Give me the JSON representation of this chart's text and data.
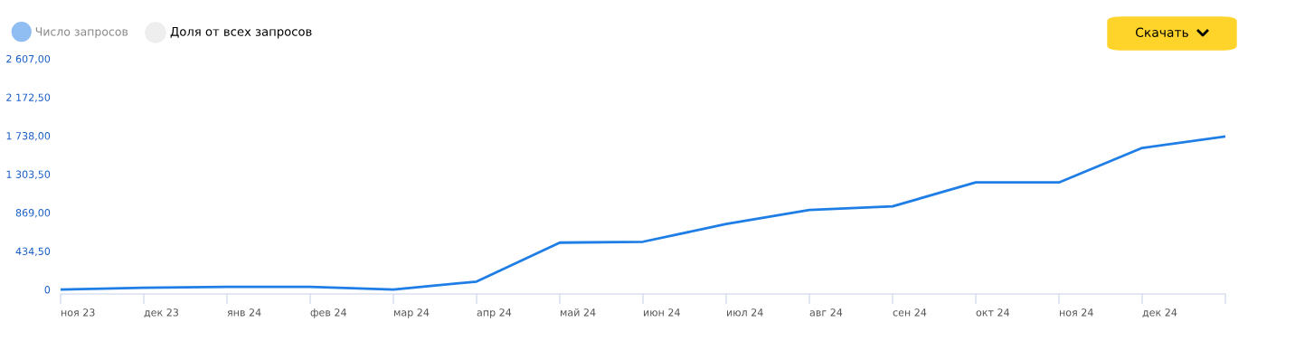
{
  "chart_data": {
    "type": "line",
    "categories": [
      "ноя 23",
      "дек 23",
      "янв 24",
      "фев 24",
      "мар 24",
      "апр 24",
      "май 24",
      "июн 24",
      "июл 24",
      "авг 24",
      "сен 24",
      "окт 24",
      "ноя 24",
      "дек 24",
      null
    ],
    "series": [
      {
        "name": "Число запросов",
        "color": "#1f7ee6",
        "values": [
          0,
          20,
          30,
          30,
          0,
          90,
          530,
          540,
          740,
          900,
          940,
          1210,
          1210,
          1600,
          1730
        ]
      }
    ],
    "ylim": [
      -50,
      2607
    ],
    "yticks": [
      {
        "value": 0,
        "label": "0"
      },
      {
        "value": 434.5,
        "label": "434,50"
      },
      {
        "value": 869,
        "label": "869,00"
      },
      {
        "value": 1303.5,
        "label": "1 303,50"
      },
      {
        "value": 1738,
        "label": "1 738,00"
      },
      {
        "value": 2172.5,
        "label": "2 172,50"
      },
      {
        "value": 2607,
        "label": "2 607,00"
      }
    ],
    "grid": false,
    "legend": "top left",
    "marker": "none",
    "line_style": "solid",
    "annotations": [
      "Доля от всех запросов",
      "Скачать"
    ]
  }
}
